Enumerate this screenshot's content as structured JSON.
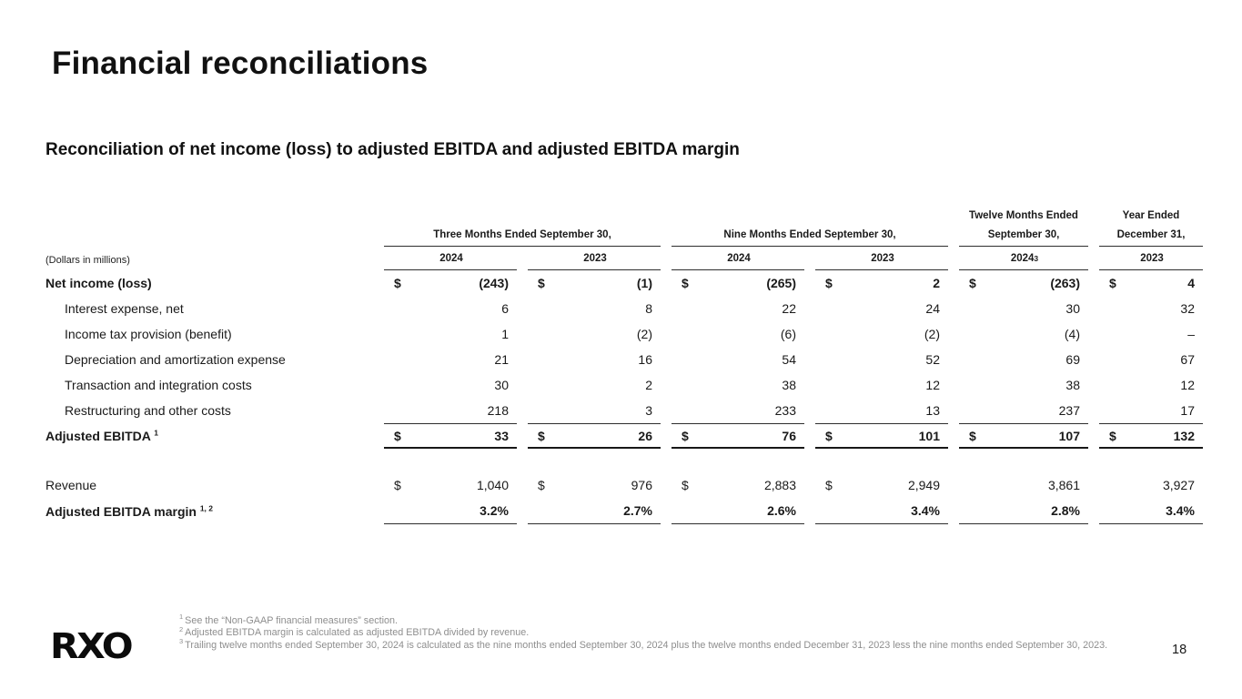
{
  "slide": {
    "title": "Financial reconciliations",
    "subtitle": "Reconciliation of net income (loss) to adjusted EBITDA and adjusted EBITDA margin",
    "logo_text": "RXO",
    "page_number": "18"
  },
  "table": {
    "units_label": "(Dollars in millions)",
    "currency_symbol": "$",
    "column_groups": [
      {
        "label": "Three Months Ended September 30,"
      },
      {
        "label": "Nine Months Ended September 30,"
      },
      {
        "label": "Twelve Months Ended September 30,"
      },
      {
        "label": "Year Ended December 31,"
      }
    ],
    "year_headers": [
      {
        "label": "2024"
      },
      {
        "label": "2023"
      },
      {
        "label": "2024"
      },
      {
        "label": "2023"
      },
      {
        "label": "2024",
        "sup": "3"
      },
      {
        "label": "2023"
      }
    ],
    "rows": [
      {
        "label": "Net income (loss)",
        "values": [
          "(243)",
          "(1)",
          "(265)",
          "2",
          "(263)",
          "4"
        ]
      },
      {
        "label": "Interest expense, net",
        "values": [
          "6",
          "8",
          "22",
          "24",
          "30",
          "32"
        ]
      },
      {
        "label": "Income tax provision (benefit)",
        "values": [
          "1",
          "(2)",
          "(6)",
          "(2)",
          "(4)",
          "–"
        ]
      },
      {
        "label": "Depreciation and amortization expense",
        "values": [
          "21",
          "16",
          "54",
          "52",
          "69",
          "67"
        ]
      },
      {
        "label": "Transaction and integration costs",
        "values": [
          "30",
          "2",
          "38",
          "12",
          "38",
          "12"
        ]
      },
      {
        "label": "Restructuring and other costs",
        "values": [
          "218",
          "3",
          "233",
          "13",
          "237",
          "17"
        ]
      },
      {
        "label": "Adjusted EBITDA",
        "sup": "1",
        "values": [
          "33",
          "26",
          "76",
          "101",
          "107",
          "132"
        ]
      }
    ],
    "revenue_row": {
      "label": "Revenue",
      "values": [
        "1,040",
        "976",
        "2,883",
        "2,949",
        "3,861",
        "3,927"
      ]
    },
    "margin_row": {
      "label": "Adjusted EBITDA margin",
      "sup": "1, 2",
      "values": [
        "3.2%",
        "2.7%",
        "2.6%",
        "3.4%",
        "2.8%",
        "3.4%"
      ]
    }
  },
  "footnotes": [
    {
      "sup": "1",
      "text": "See the “Non-GAAP financial measures” section."
    },
    {
      "sup": "2",
      "text": "Adjusted EBITDA margin is calculated as adjusted EBITDA divided by revenue."
    },
    {
      "sup": "3",
      "text": "Trailing twelve months ended September 30, 2024 is calculated as the nine months ended September 30, 2024 plus the twelve months ended December 31, 2023 less the nine months ended September 30, 2023."
    }
  ]
}
